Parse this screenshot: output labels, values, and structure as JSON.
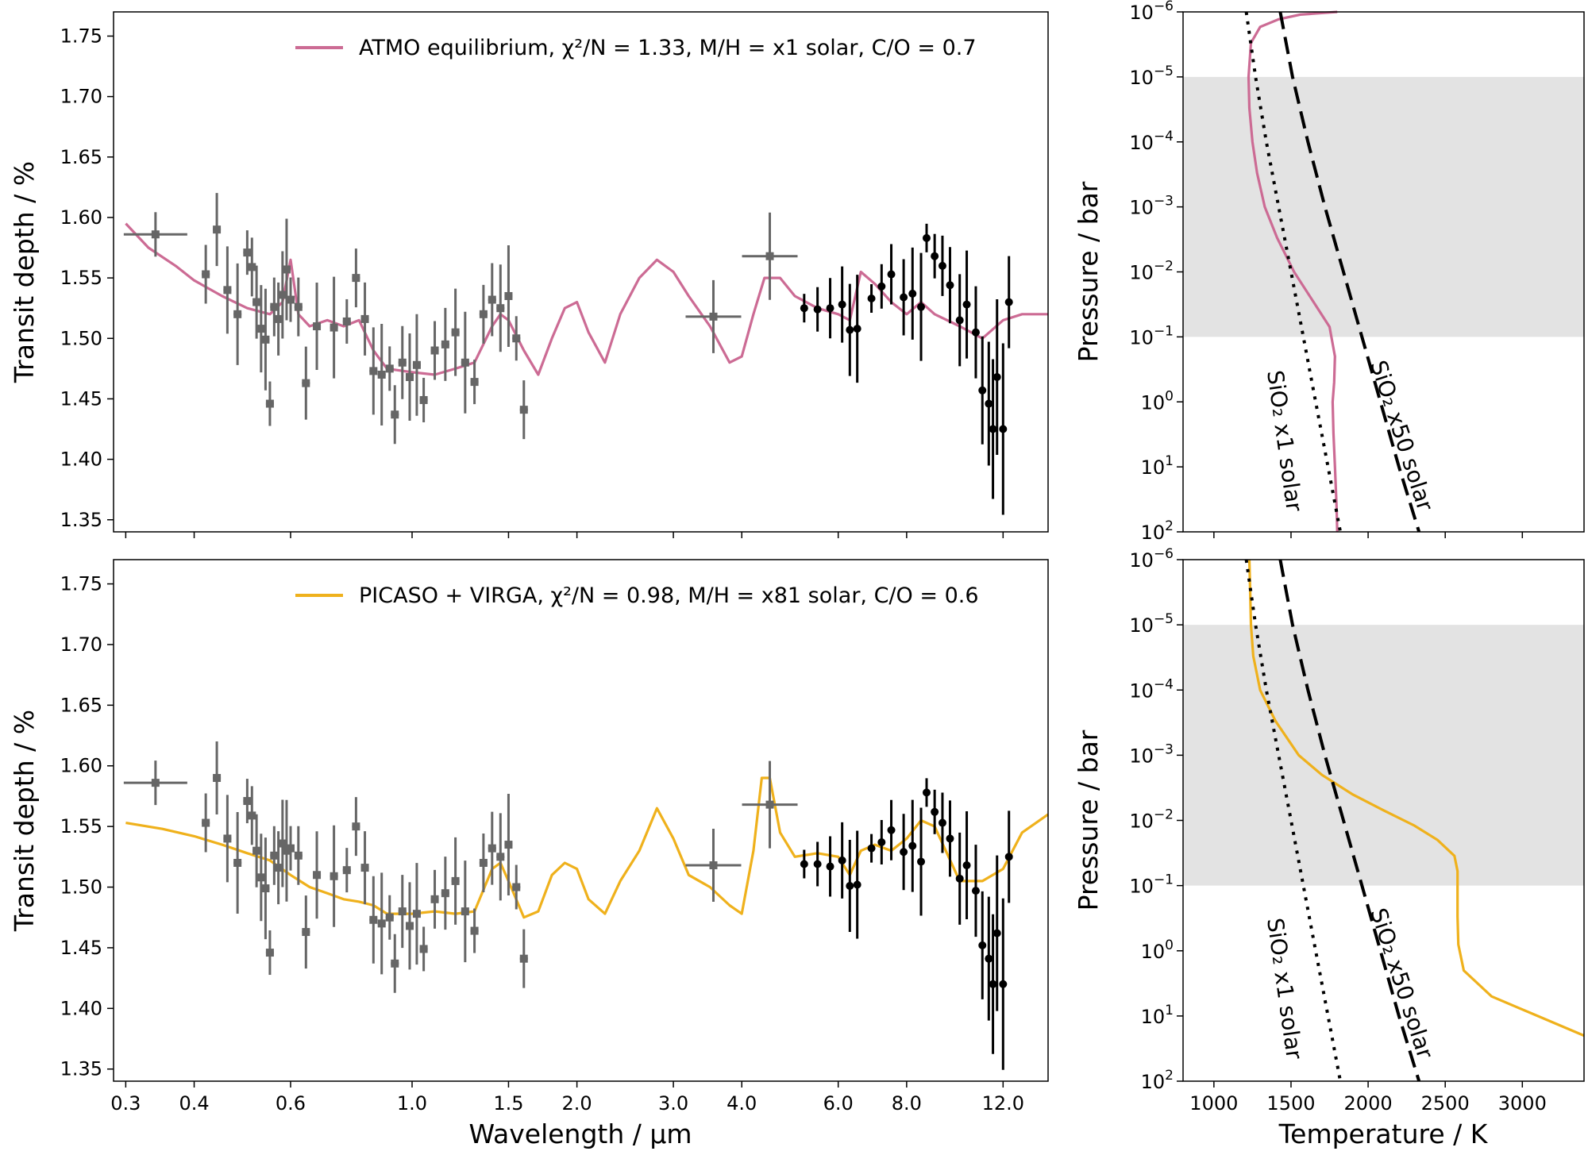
{
  "figure": {
    "xlabel_left": "Wavelength / µm",
    "ylabel_left": "Transit depth / %",
    "xlabel_right": "Temperature / K",
    "ylabel_right": "Pressure / bar",
    "label_x1": "SiO₂ x1 solar",
    "label_x50": "SiO₂ x50 solar"
  },
  "chart_data": [
    {
      "type": "line",
      "panel": "top-left",
      "xscale": "log",
      "xlim": [
        0.285,
        14.5
      ],
      "ylim": [
        1.34,
        1.77
      ],
      "xticks": [
        "0.3",
        "0.4",
        "0.6",
        "1.0",
        "1.5",
        "2.0",
        "3.0",
        "4.0",
        "6.0",
        "8.0",
        "12.0"
      ],
      "yticks": [
        "1.35",
        "1.40",
        "1.45",
        "1.50",
        "1.55",
        "1.60",
        "1.65",
        "1.70",
        "1.75"
      ],
      "ylabel": "Transit depth / %",
      "legend": "top-right",
      "series": [
        {
          "name": "ATMO equilibrium, χ²/N = 1.33, M/H = x1 solar, C/O = 0.7",
          "color": "#cc6b94",
          "x": [
            0.3,
            0.33,
            0.37,
            0.4,
            0.45,
            0.5,
            0.55,
            0.58,
            0.6,
            0.62,
            0.65,
            0.7,
            0.75,
            0.8,
            0.85,
            0.9,
            1.0,
            1.1,
            1.2,
            1.3,
            1.4,
            1.45,
            1.5,
            1.6,
            1.7,
            1.8,
            1.9,
            2.0,
            2.1,
            2.25,
            2.4,
            2.6,
            2.8,
            3.0,
            3.2,
            3.5,
            3.8,
            4.0,
            4.2,
            4.4,
            4.7,
            5.0,
            5.5,
            6.0,
            6.3,
            6.6,
            7.0,
            7.5,
            8.0,
            8.5,
            9.0,
            10.0,
            11.0,
            12.0,
            13.0,
            14.5
          ],
          "y": [
            1.595,
            1.575,
            1.56,
            1.548,
            1.535,
            1.525,
            1.52,
            1.53,
            1.565,
            1.52,
            1.51,
            1.515,
            1.51,
            1.515,
            1.49,
            1.475,
            1.472,
            1.47,
            1.475,
            1.48,
            1.51,
            1.52,
            1.515,
            1.49,
            1.47,
            1.5,
            1.525,
            1.53,
            1.505,
            1.48,
            1.52,
            1.55,
            1.565,
            1.555,
            1.535,
            1.51,
            1.48,
            1.485,
            1.52,
            1.55,
            1.55,
            1.535,
            1.525,
            1.52,
            1.515,
            1.555,
            1.545,
            1.53,
            1.52,
            1.53,
            1.52,
            1.51,
            1.5,
            1.515,
            1.52,
            1.52
          ]
        }
      ],
      "data_points": {
        "grey": [
          [
            0.34,
            1.586
          ],
          [
            0.42,
            1.553
          ],
          [
            0.44,
            1.59
          ],
          [
            0.46,
            1.54
          ],
          [
            0.48,
            1.52
          ],
          [
            0.5,
            1.571
          ],
          [
            0.51,
            1.559
          ],
          [
            0.52,
            1.53
          ],
          [
            0.53,
            1.508
          ],
          [
            0.54,
            1.499
          ],
          [
            0.55,
            1.446
          ],
          [
            0.56,
            1.526
          ],
          [
            0.57,
            1.516
          ],
          [
            0.58,
            1.536
          ],
          [
            0.59,
            1.557
          ],
          [
            0.6,
            1.532
          ],
          [
            0.62,
            1.526
          ],
          [
            0.64,
            1.463
          ],
          [
            0.67,
            1.51
          ],
          [
            0.72,
            1.509
          ],
          [
            0.76,
            1.514
          ],
          [
            0.79,
            1.55
          ],
          [
            0.82,
            1.516
          ],
          [
            0.85,
            1.473
          ],
          [
            0.88,
            1.47
          ],
          [
            0.91,
            1.475
          ],
          [
            0.93,
            1.437
          ],
          [
            0.96,
            1.48
          ],
          [
            0.99,
            1.468
          ],
          [
            1.02,
            1.478
          ],
          [
            1.05,
            1.449
          ],
          [
            1.1,
            1.49
          ],
          [
            1.15,
            1.495
          ],
          [
            1.2,
            1.505
          ],
          [
            1.25,
            1.48
          ],
          [
            1.3,
            1.464
          ],
          [
            1.35,
            1.52
          ],
          [
            1.4,
            1.532
          ],
          [
            1.45,
            1.525
          ],
          [
            1.5,
            1.535
          ],
          [
            1.55,
            1.5
          ],
          [
            1.6,
            1.441
          ],
          [
            3.55,
            1.518
          ],
          [
            4.5,
            1.568
          ]
        ],
        "black": [
          [
            5.2,
            1.525
          ],
          [
            5.5,
            1.524
          ],
          [
            5.8,
            1.525
          ],
          [
            6.1,
            1.528
          ],
          [
            6.3,
            1.507
          ],
          [
            6.5,
            1.508
          ],
          [
            6.9,
            1.533
          ],
          [
            7.2,
            1.543
          ],
          [
            7.5,
            1.553
          ],
          [
            7.9,
            1.534
          ],
          [
            8.2,
            1.537
          ],
          [
            8.5,
            1.526
          ],
          [
            8.7,
            1.583
          ],
          [
            9.0,
            1.568
          ],
          [
            9.3,
            1.56
          ],
          [
            9.6,
            1.544
          ],
          [
            10.0,
            1.515
          ],
          [
            10.3,
            1.528
          ],
          [
            10.7,
            1.505
          ],
          [
            11.0,
            1.457
          ],
          [
            11.3,
            1.446
          ],
          [
            11.5,
            1.425
          ],
          [
            11.7,
            1.468
          ],
          [
            12.0,
            1.425
          ],
          [
            12.3,
            1.53
          ]
        ]
      }
    },
    {
      "type": "line",
      "panel": "bottom-left",
      "xscale": "log",
      "xlim": [
        0.285,
        14.5
      ],
      "ylim": [
        1.34,
        1.77
      ],
      "xticks": [
        "0.3",
        "0.4",
        "0.6",
        "1.0",
        "1.5",
        "2.0",
        "3.0",
        "4.0",
        "6.0",
        "8.0",
        "12.0"
      ],
      "yticks": [
        "1.35",
        "1.40",
        "1.45",
        "1.50",
        "1.55",
        "1.60",
        "1.65",
        "1.70",
        "1.75"
      ],
      "xlabel": "Wavelength / µm",
      "ylabel": "Transit depth / %",
      "legend": "top-right",
      "series": [
        {
          "name": "PICASO + VIRGA, χ²/N = 0.98, M/H = x81 solar, C/O = 0.6",
          "color": "#efb11c",
          "x": [
            0.3,
            0.35,
            0.4,
            0.45,
            0.5,
            0.55,
            0.6,
            0.65,
            0.7,
            0.75,
            0.8,
            0.85,
            0.9,
            1.0,
            1.1,
            1.2,
            1.3,
            1.4,
            1.45,
            1.5,
            1.6,
            1.7,
            1.8,
            1.9,
            2.0,
            2.1,
            2.25,
            2.4,
            2.6,
            2.8,
            3.0,
            3.2,
            3.5,
            3.8,
            4.0,
            4.2,
            4.35,
            4.5,
            4.7,
            5.0,
            5.5,
            6.0,
            6.3,
            6.6,
            7.0,
            7.5,
            8.0,
            8.5,
            9.0,
            10.0,
            11.0,
            12.0,
            13.0,
            14.5
          ],
          "y": [
            1.553,
            1.548,
            1.542,
            1.535,
            1.528,
            1.522,
            1.51,
            1.5,
            1.495,
            1.49,
            1.488,
            1.485,
            1.478,
            1.478,
            1.48,
            1.478,
            1.48,
            1.515,
            1.52,
            1.505,
            1.475,
            1.48,
            1.51,
            1.52,
            1.515,
            1.49,
            1.478,
            1.505,
            1.53,
            1.565,
            1.54,
            1.51,
            1.5,
            1.485,
            1.478,
            1.53,
            1.59,
            1.59,
            1.545,
            1.525,
            1.528,
            1.525,
            1.51,
            1.53,
            1.535,
            1.53,
            1.54,
            1.555,
            1.55,
            1.505,
            1.505,
            1.515,
            1.545,
            1.56
          ]
        }
      ],
      "data_points": {
        "grey": [
          [
            0.34,
            1.586
          ],
          [
            0.42,
            1.553
          ],
          [
            0.44,
            1.59
          ],
          [
            0.46,
            1.54
          ],
          [
            0.48,
            1.52
          ],
          [
            0.5,
            1.571
          ],
          [
            0.51,
            1.559
          ],
          [
            0.52,
            1.53
          ],
          [
            0.53,
            1.508
          ],
          [
            0.54,
            1.499
          ],
          [
            0.55,
            1.446
          ],
          [
            0.56,
            1.526
          ],
          [
            0.57,
            1.516
          ],
          [
            0.58,
            1.536
          ],
          [
            0.59,
            1.53
          ],
          [
            0.6,
            1.532
          ],
          [
            0.62,
            1.526
          ],
          [
            0.64,
            1.463
          ],
          [
            0.67,
            1.51
          ],
          [
            0.72,
            1.509
          ],
          [
            0.76,
            1.514
          ],
          [
            0.79,
            1.55
          ],
          [
            0.82,
            1.516
          ],
          [
            0.85,
            1.473
          ],
          [
            0.88,
            1.47
          ],
          [
            0.91,
            1.475
          ],
          [
            0.93,
            1.437
          ],
          [
            0.96,
            1.48
          ],
          [
            0.99,
            1.468
          ],
          [
            1.02,
            1.478
          ],
          [
            1.05,
            1.449
          ],
          [
            1.1,
            1.49
          ],
          [
            1.15,
            1.495
          ],
          [
            1.2,
            1.505
          ],
          [
            1.25,
            1.48
          ],
          [
            1.3,
            1.464
          ],
          [
            1.35,
            1.52
          ],
          [
            1.4,
            1.532
          ],
          [
            1.45,
            1.525
          ],
          [
            1.5,
            1.535
          ],
          [
            1.55,
            1.5
          ],
          [
            1.6,
            1.441
          ],
          [
            3.55,
            1.518
          ],
          [
            4.5,
            1.568
          ]
        ],
        "black": [
          [
            5.2,
            1.519
          ],
          [
            5.5,
            1.519
          ],
          [
            5.8,
            1.517
          ],
          [
            6.1,
            1.522
          ],
          [
            6.3,
            1.501
          ],
          [
            6.5,
            1.502
          ],
          [
            6.9,
            1.532
          ],
          [
            7.2,
            1.537
          ],
          [
            7.5,
            1.547
          ],
          [
            7.9,
            1.529
          ],
          [
            8.2,
            1.534
          ],
          [
            8.5,
            1.521
          ],
          [
            8.7,
            1.578
          ],
          [
            9.0,
            1.562
          ],
          [
            9.3,
            1.553
          ],
          [
            9.6,
            1.54
          ],
          [
            10.0,
            1.507
          ],
          [
            10.3,
            1.518
          ],
          [
            10.7,
            1.497
          ],
          [
            11.0,
            1.452
          ],
          [
            11.3,
            1.441
          ],
          [
            11.5,
            1.42
          ],
          [
            11.7,
            1.462
          ],
          [
            12.0,
            1.42
          ],
          [
            12.3,
            1.525
          ]
        ]
      }
    },
    {
      "type": "line",
      "panel": "top-right",
      "xlim": [
        800,
        3400
      ],
      "ylim": [
        1e-06,
        100
      ],
      "yscale": "log",
      "yinverted": true,
      "xticks": [
        1000,
        1500,
        2000,
        2500,
        3000
      ],
      "ylabel": "Pressure / bar",
      "shaded_pressure_range": [
        1e-05,
        0.1
      ],
      "series": [
        {
          "name": "ATMO",
          "color": "#cc6b94",
          "T": [
            1800,
            1560,
            1420,
            1300,
            1240,
            1225,
            1230,
            1250,
            1280,
            1330,
            1410,
            1520,
            1650,
            1750,
            1785,
            1780,
            1770,
            1775,
            1785,
            1795,
            1800
          ],
          "P": [
            1e-06,
            1.1e-06,
            1.3e-06,
            1.7e-06,
            3e-06,
            1e-05,
            3e-05,
            0.0001,
            0.0003,
            0.001,
            0.003,
            0.01,
            0.03,
            0.07,
            0.2,
            0.5,
            1.0,
            3.0,
            10.0,
            40.0,
            100.0
          ]
        },
        {
          "name": "SiO₂ x1 solar",
          "color": "#000000",
          "T": [
            1210,
            1270,
            1340,
            1420,
            1500,
            1580,
            1660,
            1740,
            1820
          ],
          "P": [
            1e-06,
            1e-05,
            0.0001,
            0.001,
            0.01,
            0.1,
            1.0,
            10.0,
            100.0
          ]
        },
        {
          "name": "SiO₂ x50 solar",
          "color": "#000000",
          "T": [
            1430,
            1510,
            1610,
            1720,
            1840,
            1960,
            2080,
            2200,
            2330
          ],
          "P": [
            1e-06,
            1e-05,
            0.0001,
            0.001,
            0.01,
            0.1,
            1.0,
            10.0,
            100.0
          ]
        }
      ]
    },
    {
      "type": "line",
      "panel": "bottom-right",
      "xlim": [
        800,
        3400
      ],
      "ylim": [
        1e-06,
        100
      ],
      "yscale": "log",
      "yinverted": true,
      "xticks": [
        1000,
        1500,
        2000,
        2500,
        3000
      ],
      "xlabel": "Temperature / K",
      "ylabel": "Pressure / bar",
      "shaded_pressure_range": [
        1e-05,
        0.1
      ],
      "series": [
        {
          "name": "PICASO + VIRGA",
          "color": "#efb11c",
          "T": [
            1230,
            1235,
            1240,
            1255,
            1300,
            1400,
            1550,
            1700,
            1900,
            2100,
            2300,
            2450,
            2560,
            2580,
            2580,
            2585,
            2620,
            2800,
            3100,
            3400
          ],
          "P": [
            1e-06,
            3e-06,
            1e-05,
            3e-05,
            0.0001,
            0.0003,
            0.001,
            0.002,
            0.004,
            0.007,
            0.012,
            0.02,
            0.035,
            0.06,
            0.3,
            0.8,
            2.0,
            5.0,
            10.0,
            20.0
          ]
        },
        {
          "name": "SiO₂ x1 solar",
          "color": "#000000",
          "T": [
            1210,
            1270,
            1340,
            1420,
            1500,
            1580,
            1660,
            1740,
            1820
          ],
          "P": [
            1e-06,
            1e-05,
            0.0001,
            0.001,
            0.01,
            0.1,
            1.0,
            10.0,
            100.0
          ]
        },
        {
          "name": "SiO₂ x50 solar",
          "color": "#000000",
          "T": [
            1430,
            1510,
            1610,
            1720,
            1840,
            1960,
            2080,
            2200,
            2330
          ],
          "P": [
            1e-06,
            1e-05,
            0.0001,
            0.001,
            0.01,
            0.1,
            1.0,
            10.0,
            100.0
          ]
        }
      ]
    }
  ]
}
